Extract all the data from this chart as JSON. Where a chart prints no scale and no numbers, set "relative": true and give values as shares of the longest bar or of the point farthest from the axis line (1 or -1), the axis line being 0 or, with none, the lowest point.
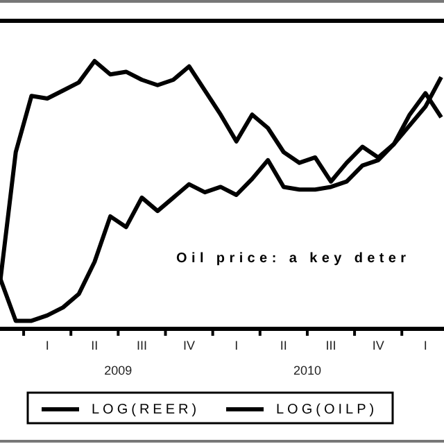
{
  "chart_data": {
    "type": "line",
    "relative": true,
    "legend": "bottom",
    "categories": [
      null,
      null,
      null,
      "I",
      null,
      null,
      "II",
      null,
      null,
      "III",
      null,
      null,
      "IV",
      null,
      null,
      "I",
      null,
      null,
      "II",
      null,
      null,
      "III",
      null,
      null,
      "IV",
      null,
      null,
      "I",
      null
    ],
    "series": [
      {
        "name": "LOG(REER)",
        "color": "#000000",
        "values": [
          0.17,
          0.66,
          0.87,
          0.86,
          0.89,
          0.92,
          1.0,
          0.95,
          0.96,
          0.93,
          0.91,
          0.93,
          0.98,
          0.89,
          0.8,
          0.7,
          0.8,
          0.75,
          0.66,
          0.62,
          0.64,
          0.55,
          0.62,
          0.68,
          0.64,
          0.69,
          0.8,
          0.88,
          0.79
        ]
      },
      {
        "name": "LOG(OILP)",
        "color": "#000000",
        "values": [
          0.19,
          0.03,
          0.03,
          0.05,
          0.08,
          0.13,
          0.25,
          0.42,
          0.38,
          0.49,
          0.44,
          0.49,
          0.54,
          0.51,
          0.53,
          0.5,
          0.56,
          0.63,
          0.53,
          0.52,
          0.52,
          0.53,
          0.55,
          0.61,
          0.63,
          0.69,
          0.76,
          0.83,
          0.94
        ]
      }
    ],
    "annotations": [
      "Oil price: a key deter",
      "2009",
      "2010"
    ]
  }
}
